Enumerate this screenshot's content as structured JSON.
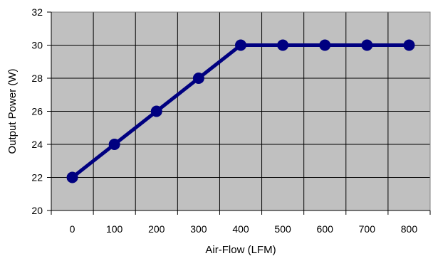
{
  "chart_data": {
    "type": "line",
    "title": "",
    "xlabel": "Air-Flow (LFM)",
    "ylabel": "Output Power (W)",
    "x_categories": [
      "0",
      "100",
      "200",
      "300",
      "400",
      "500",
      "600",
      "700",
      "800"
    ],
    "y_ticks": [
      "20",
      "22",
      "24",
      "26",
      "28",
      "30",
      "32"
    ],
    "ylim": [
      20,
      32
    ],
    "grid": true,
    "legend": "none",
    "series": [
      {
        "x": [
          0,
          100,
          200,
          300,
          400,
          500,
          600,
          700,
          800
        ],
        "y": [
          22,
          24,
          26,
          28,
          30,
          30,
          30,
          30,
          30
        ]
      }
    ],
    "colors": {
      "plot_background": "#c0c0c0",
      "gridline": "#000000",
      "series_line": "#000080"
    }
  }
}
